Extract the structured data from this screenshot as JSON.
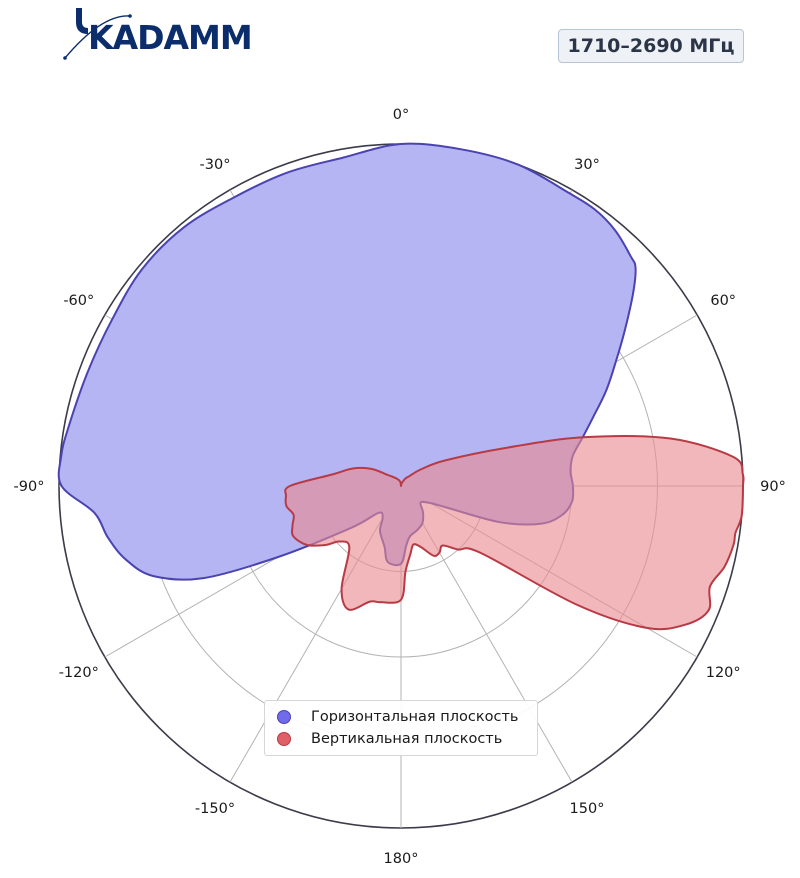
{
  "header": {
    "logo_text": "KADAMM",
    "frequency_badge": "1710–2690 МГц"
  },
  "colors": {
    "horizontal_fill": "#b5b5f4",
    "horizontal_line": "#4a43b0",
    "vertical_fill": "#e88a90",
    "vertical_line": "#b83a44",
    "logo": "#0c2d6b"
  },
  "chart_data": {
    "type": "polar-area",
    "angle_unit": "degrees",
    "angle_zero": "top",
    "direction": "clockwise",
    "radial_range": [
      0,
      40
    ],
    "radial_ticks": [
      10,
      20,
      30,
      40
    ],
    "radial_tick_labels_shown": false,
    "grid": true,
    "angle_ticks": [
      0,
      30,
      60,
      90,
      120,
      150,
      180,
      -150,
      -120,
      -90,
      -60,
      -30
    ],
    "angle_tick_labels": [
      "0°",
      "30°",
      "60°",
      "90°",
      "120°",
      "150°",
      "180°",
      "-150°",
      "-120°",
      "-90°",
      "-60°",
      "-30°"
    ],
    "legend_placement": "bottom-center",
    "series": [
      {
        "name": "Горизонтальная плоскость",
        "color": "#6f6bea",
        "angles": [
          -180,
          -170,
          -165,
          -155,
          -150,
          -140,
          -130,
          -120,
          -115,
          -110,
          -105,
          -100,
          -95,
          -90,
          -85,
          -80,
          -70,
          -60,
          -50,
          -40,
          -30,
          -20,
          -10,
          0,
          10,
          20,
          30,
          35,
          40,
          45,
          47,
          50,
          55,
          60,
          65,
          70,
          75,
          80,
          85,
          88,
          90,
          95,
          100,
          105,
          110,
          115,
          120,
          130,
          140,
          150,
          160,
          170,
          175
        ],
        "values": [
          9.1,
          9.0,
          7.4,
          5.8,
          4.3,
          4.1,
          7.6,
          16.6,
          25.5,
          30.8,
          33.3,
          34.8,
          36.0,
          39.7,
          39.9,
          39.5,
          39.0,
          39.0,
          39.5,
          39.5,
          39.0,
          39.0,
          39.0,
          40.0,
          40.0,
          40.0,
          39.5,
          39.5,
          39.0,
          38.0,
          37.5,
          35.5,
          32.0,
          29.0,
          26.5,
          24.0,
          22.0,
          20.4,
          19.9,
          20.0,
          20.1,
          20.1,
          19.2,
          17.0,
          12.4,
          6.1,
          4.0,
          3.0,
          4.0,
          5.0,
          5.5,
          6.0,
          7.0
        ]
      },
      {
        "name": "Вертикальная плоскость",
        "color": "#e06068",
        "angles": [
          -180,
          -170,
          -165,
          -157,
          -150,
          -140,
          -132,
          -128,
          -122,
          -115,
          -110,
          -105,
          -100,
          -95,
          -90,
          -80,
          -70,
          -60,
          -50,
          -30,
          -10,
          0,
          10,
          20,
          30,
          40,
          50,
          60,
          70,
          75,
          80,
          85,
          88,
          90,
          95,
          98,
          100,
          104,
          108,
          112,
          116,
          120,
          124,
          130,
          138,
          145,
          150,
          155,
          162,
          168,
          172,
          177
        ],
        "values": [
          13.3,
          13.8,
          14.0,
          15.7,
          13.9,
          9.4,
          9.7,
          11.2,
          13.0,
          13.9,
          13.5,
          13.0,
          13.6,
          13.5,
          13.0,
          8.0,
          6.0,
          4.0,
          2.0,
          1.0,
          0.5,
          0.0,
          0.3,
          0.5,
          1.0,
          1.5,
          3.0,
          6.0,
          13.0,
          22.0,
          32.0,
          39.0,
          40.0,
          40.0,
          40.0,
          39.5,
          39.5,
          39.0,
          38.0,
          38.8,
          37.0,
          33.2,
          24.9,
          12.2,
          10.0,
          8.5,
          9.0,
          9.0,
          7.5,
          7.0,
          8.0,
          10.0
        ]
      }
    ]
  }
}
